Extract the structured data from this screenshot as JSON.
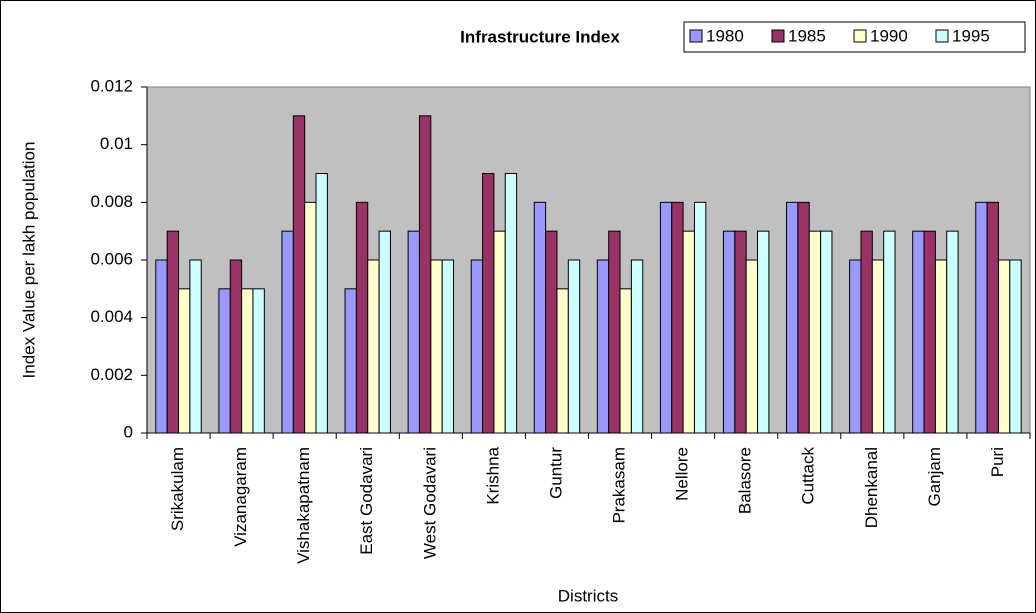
{
  "chart_data": {
    "type": "bar",
    "title": "Infrastructure Index",
    "x_label": "Districts",
    "y_label": "Index Value per lakh population",
    "categories": [
      "Srikakulam",
      "Vizanagaram",
      "Vishakapatnam",
      "East Godavari",
      "West Godavari",
      "Krishna",
      "Guntur",
      "Prakasam",
      "Nellore",
      "Balasore",
      "Cuttack",
      "Dhenkanal",
      "Ganjam",
      "Puri"
    ],
    "series": [
      {
        "name": "1980",
        "color": "#9999ff",
        "values": [
          0.006,
          0.005,
          0.007,
          0.005,
          0.007,
          0.006,
          0.008,
          0.006,
          0.008,
          0.007,
          0.008,
          0.006,
          0.007,
          0.008
        ]
      },
      {
        "name": "1985",
        "color": "#993366",
        "values": [
          0.007,
          0.006,
          0.011,
          0.008,
          0.011,
          0.009,
          0.007,
          0.007,
          0.008,
          0.007,
          0.008,
          0.007,
          0.007,
          0.008
        ]
      },
      {
        "name": "1990",
        "color": "#ffffcc",
        "values": [
          0.005,
          0.005,
          0.008,
          0.006,
          0.006,
          0.007,
          0.005,
          0.005,
          0.007,
          0.006,
          0.007,
          0.006,
          0.006,
          0.006
        ]
      },
      {
        "name": "1995",
        "color": "#ccffff",
        "values": [
          0.006,
          0.005,
          0.009,
          0.007,
          0.006,
          0.009,
          0.006,
          0.006,
          0.008,
          0.007,
          0.007,
          0.007,
          0.007,
          0.006
        ]
      }
    ],
    "ylim": [
      0,
      0.012
    ],
    "yticks": [
      0,
      0.002,
      0.004,
      0.006,
      0.008,
      0.01,
      0.012
    ],
    "grid": false,
    "legend": "top-right",
    "plot_background": "#c0c0c0"
  }
}
